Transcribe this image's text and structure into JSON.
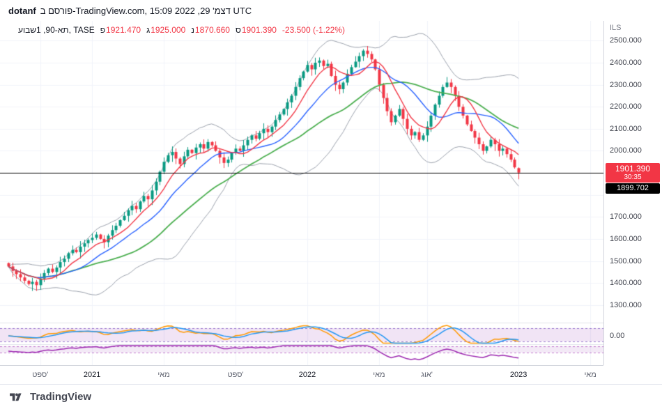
{
  "header": {
    "author": "dotanf",
    "published": "פורסם ב-TradingView.com, דצמ' 29, 2022 15:09 UTC"
  },
  "legend": {
    "symbol": "תא-90, 1שבוע, TASE",
    "ohlc": [
      {
        "label": "פ",
        "value": "1921.470"
      },
      {
        "label": "ג",
        "value": "1925.000"
      },
      {
        "label": "נ",
        "value": "1870.660"
      },
      {
        "label": "ס",
        "value": "1901.390"
      }
    ],
    "change": "-23.500 (-1.22%)"
  },
  "price_scale": {
    "currency": "ILS",
    "ticks": [
      {
        "label": "2500.000",
        "value": 2500
      },
      {
        "label": "2400.000",
        "value": 2400
      },
      {
        "label": "2300.000",
        "value": 2300
      },
      {
        "label": "2200.000",
        "value": 2200
      },
      {
        "label": "2100.000",
        "value": 2100
      },
      {
        "label": "2000.000",
        "value": 2000
      },
      {
        "label": "1700.000",
        "value": 1700
      },
      {
        "label": "1600.000",
        "value": 1600
      },
      {
        "label": "1500.000",
        "value": 1500
      },
      {
        "label": "1400.000",
        "value": 1400
      },
      {
        "label": "1300.000",
        "value": 1300
      }
    ],
    "last_price_badge": {
      "price": "1901.390",
      "countdown": "30:35",
      "color": "#f23645"
    },
    "line_badge": {
      "price": "1899.702",
      "color": "#000000"
    },
    "indicator_tick": "0.00"
  },
  "time_axis": {
    "labels": [
      {
        "text": "ספט'",
        "week": 8
      },
      {
        "text": "2021",
        "week": 21,
        "year": true
      },
      {
        "text": "מאי",
        "week": 39
      },
      {
        "text": "ספט'",
        "week": 57
      },
      {
        "text": "2022",
        "week": 75,
        "year": true
      },
      {
        "text": "מאי",
        "week": 93
      },
      {
        "text": "אוג'",
        "week": 105
      },
      {
        "text": "2023",
        "week": 128,
        "year": true
      },
      {
        "text": "מאי",
        "week": 146
      }
    ]
  },
  "footer": {
    "brand": "TradingView"
  },
  "chart_data": {
    "type": "candlestick",
    "symbol": "TA-90",
    "exchange": "TASE",
    "interval": "1W",
    "currency": "ILS",
    "title": "תא-90, 1שבוע, TASE",
    "last": {
      "open": 1921.47,
      "high": 1925.0,
      "low": 1870.66,
      "close": 1901.39,
      "change": -23.5,
      "change_pct": -1.22
    },
    "horizontal_line": 1899.702,
    "y_axis": {
      "min": 1220,
      "max": 2590,
      "tick_step": 100
    },
    "first_open": 1490,
    "colors": {
      "up": "#089981",
      "down": "#f23645",
      "grid": "#f0f3fa",
      "hline": "#000000"
    },
    "closes": [
      1475,
      1455,
      1440,
      1425,
      1410,
      1395,
      1405,
      1390,
      1420,
      1445,
      1465,
      1450,
      1470,
      1495,
      1510,
      1535,
      1550,
      1540,
      1565,
      1580,
      1595,
      1605,
      1620,
      1600,
      1585,
      1615,
      1640,
      1660,
      1685,
      1705,
      1730,
      1750,
      1735,
      1770,
      1795,
      1780,
      1820,
      1860,
      1905,
      1950,
      1980,
      1995,
      1965,
      1940,
      1975,
      2005,
      1990,
      2015,
      2030,
      2010,
      2040,
      2025,
      2000,
      1970,
      1945,
      1960,
      1990,
      2010,
      2000,
      2025,
      2050,
      2070,
      2055,
      2080,
      2100,
      2085,
      2110,
      2140,
      2165,
      2190,
      2220,
      2250,
      2290,
      2330,
      2360,
      2390,
      2370,
      2400,
      2410,
      2385,
      2395,
      2340,
      2300,
      2280,
      2310,
      2350,
      2380,
      2405,
      2430,
      2455,
      2440,
      2415,
      2370,
      2300,
      2240,
      2180,
      2130,
      2160,
      2190,
      2145,
      2100,
      2070,
      2085,
      2050,
      2070,
      2110,
      2160,
      2210,
      2250,
      2290,
      2310,
      2290,
      2250,
      2200,
      2160,
      2120,
      2090,
      2060,
      2030,
      2000,
      2020,
      2050,
      2030,
      2000,
      2010,
      1985,
      1960,
      1925,
      1901.39
    ],
    "overlays": [
      {
        "name": "ma-fast",
        "color": "#f23645",
        "window": 8,
        "width": 1.4
      },
      {
        "name": "ma-mid",
        "color": "#2962ff",
        "window": 16,
        "width": 1.4
      },
      {
        "name": "ma-slow",
        "color": "#4caf50",
        "window": 32,
        "width": 1.8
      },
      {
        "name": "bollinger",
        "color": "#9aa0ab",
        "window": 20,
        "mult": 2
      }
    ],
    "panels": [
      {
        "name": "oscillator",
        "band_fill": "rgba(142,36,170,0.12)",
        "band_border": "rgba(103,58,183,0.65)",
        "lines": [
          {
            "color": "#ff9800"
          },
          {
            "color": "#2196f3"
          }
        ]
      },
      {
        "name": "momentum",
        "band_fill": "rgba(142,36,170,0.10)",
        "band_border": "rgba(156,39,176,0.6)",
        "lines": [
          {
            "color": "#9c27b0"
          }
        ]
      }
    ]
  }
}
